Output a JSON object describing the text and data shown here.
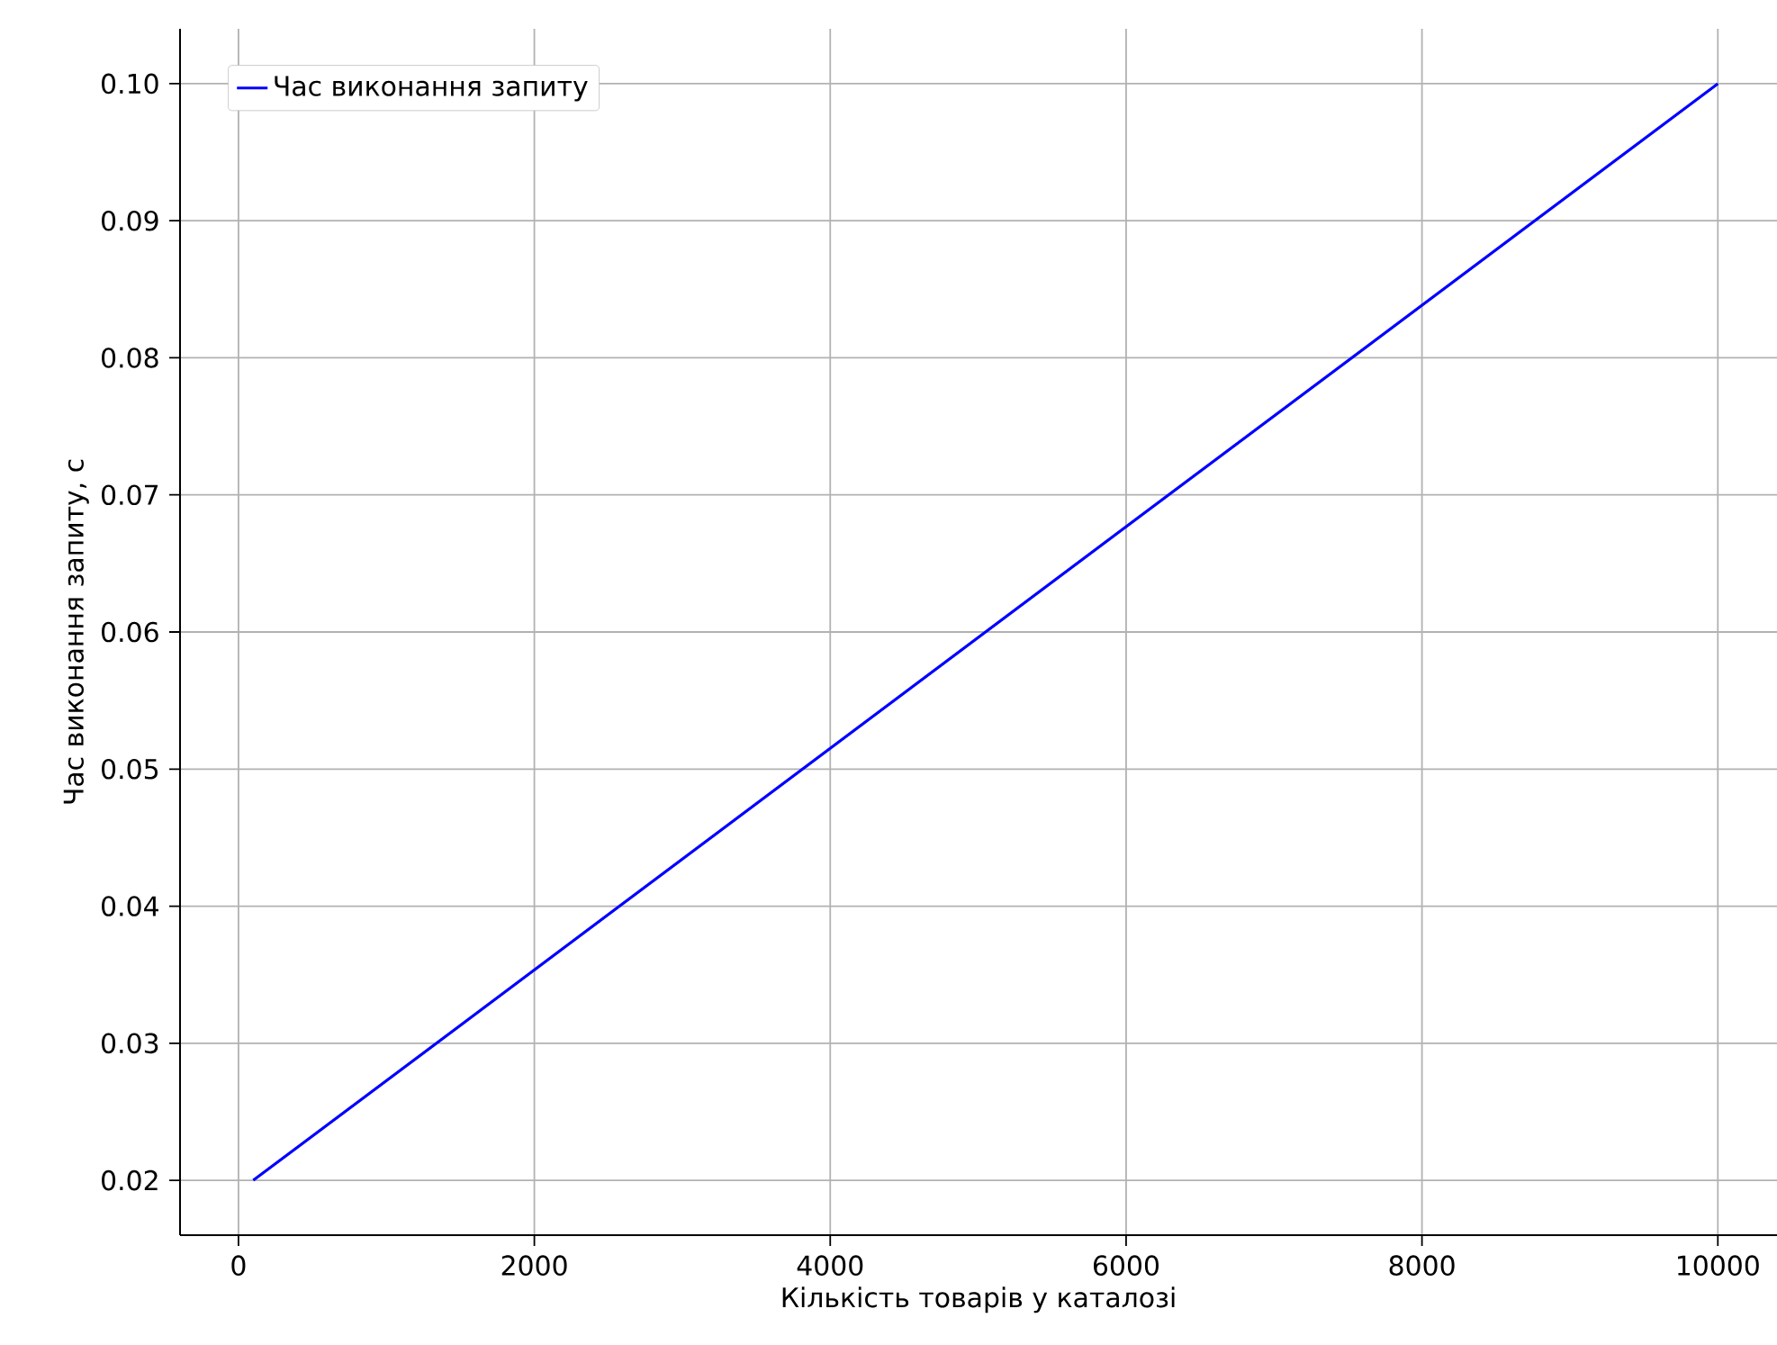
{
  "chart_data": {
    "type": "line",
    "xlabel": "Кількість товарів у каталозі",
    "ylabel": "Час виконання запиту, с",
    "x": [
      100,
      10000
    ],
    "series": [
      {
        "name": "Час виконання запиту",
        "color": "#0000ff",
        "values": [
          0.02,
          0.1
        ]
      }
    ],
    "xlim": [
      -395,
      10400
    ],
    "ylim": [
      0.016,
      0.104
    ],
    "xticks": [
      0,
      2000,
      4000,
      6000,
      8000,
      10000
    ],
    "yticks": [
      {
        "value": 0.02,
        "label": "0.02"
      },
      {
        "value": 0.03,
        "label": "0.03"
      },
      {
        "value": 0.04,
        "label": "0.04"
      },
      {
        "value": 0.05,
        "label": "0.05"
      },
      {
        "value": 0.06,
        "label": "0.06"
      },
      {
        "value": 0.07,
        "label": "0.07"
      },
      {
        "value": 0.08,
        "label": "0.08"
      },
      {
        "value": 0.09,
        "label": "0.09"
      },
      {
        "value": 0.1,
        "label": "0.10"
      }
    ],
    "grid": true,
    "legend": "top left",
    "marker": "none",
    "line_style": "solid"
  }
}
